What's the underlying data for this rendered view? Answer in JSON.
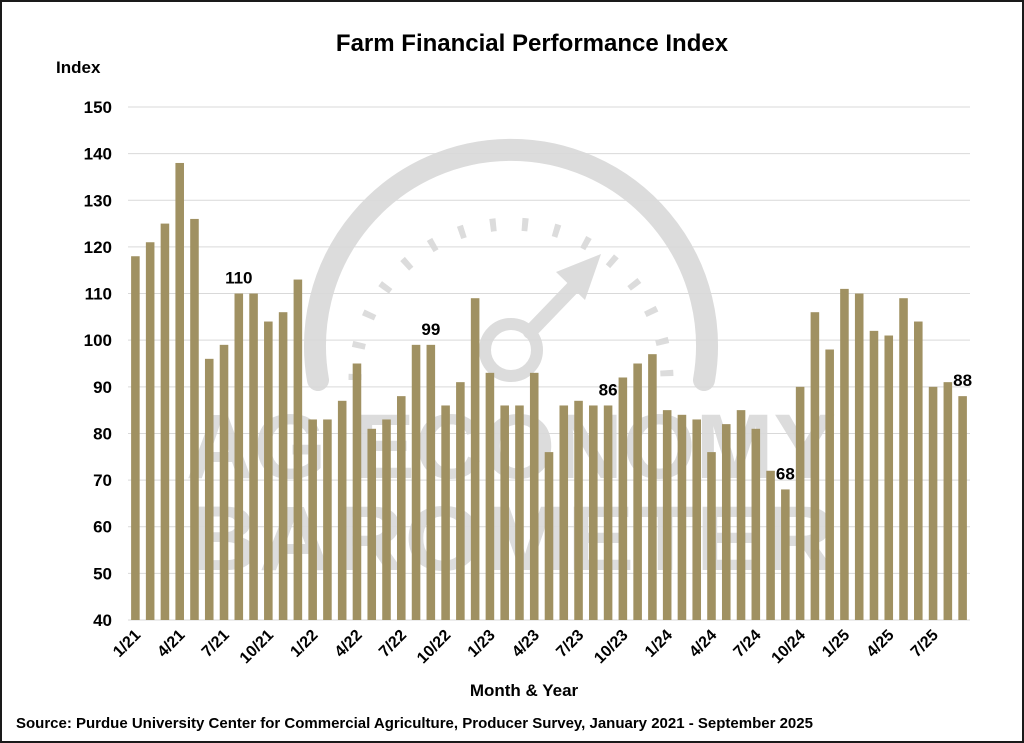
{
  "chart_data": {
    "type": "bar",
    "title": "Farm Financial Performance Index",
    "ylabel": "Index",
    "xlabel": "Month & Year",
    "source": "Source: Purdue University Center for Commercial Agriculture, Producer Survey, January 2021 - September 2025",
    "ylim": [
      40,
      150
    ],
    "yticks": [
      40,
      50,
      60,
      70,
      80,
      90,
      100,
      110,
      120,
      130,
      140,
      150
    ],
    "grid": true,
    "bar_color": "#a09162",
    "categories": [
      "1/21",
      "2/21",
      "3/21",
      "4/21",
      "5/21",
      "6/21",
      "7/21",
      "8/21",
      "9/21",
      "10/21",
      "11/21",
      "12/21",
      "1/22",
      "2/22",
      "3/22",
      "4/22",
      "5/22",
      "6/22",
      "7/22",
      "8/22",
      "9/22",
      "10/22",
      "11/22",
      "12/22",
      "1/23",
      "2/23",
      "3/23",
      "4/23",
      "5/23",
      "6/23",
      "7/23",
      "8/23",
      "9/23",
      "10/23",
      "11/23",
      "12/23",
      "1/24",
      "2/24",
      "3/24",
      "4/24",
      "5/24",
      "6/24",
      "7/24",
      "8/24",
      "9/24",
      "10/24",
      "11/24",
      "12/24",
      "1/25",
      "2/25",
      "3/25",
      "4/25",
      "5/25",
      "6/25",
      "7/25",
      "8/25",
      "9/25"
    ],
    "tick_labels": [
      "1/21",
      "4/21",
      "7/21",
      "10/21",
      "1/22",
      "4/22",
      "7/22",
      "10/22",
      "1/23",
      "4/23",
      "7/23",
      "10/23",
      "1/24",
      "4/24",
      "7/24",
      "10/24",
      "1/25",
      "4/25",
      "7/25"
    ],
    "values": [
      118,
      121,
      125,
      138,
      126,
      96,
      99,
      110,
      110,
      104,
      106,
      113,
      83,
      83,
      87,
      95,
      81,
      83,
      88,
      99,
      99,
      86,
      91,
      109,
      93,
      86,
      86,
      93,
      76,
      86,
      87,
      86,
      86,
      92,
      95,
      97,
      85,
      84,
      83,
      76,
      82,
      85,
      81,
      72,
      68,
      90,
      106,
      98,
      111,
      110,
      102,
      101,
      109,
      104,
      90,
      91,
      88
    ],
    "data_labels": [
      {
        "category": "8/21",
        "text": "110"
      },
      {
        "category": "9/22",
        "text": "99"
      },
      {
        "category": "9/23",
        "text": "86"
      },
      {
        "category": "9/24",
        "text": "68"
      },
      {
        "category": "9/25",
        "text": "88"
      }
    ]
  },
  "watermark": {
    "line1": "AG ECONOMY",
    "line2": "BAROMETER",
    "icon": "gauge-icon",
    "color": "#dcdcdc"
  }
}
